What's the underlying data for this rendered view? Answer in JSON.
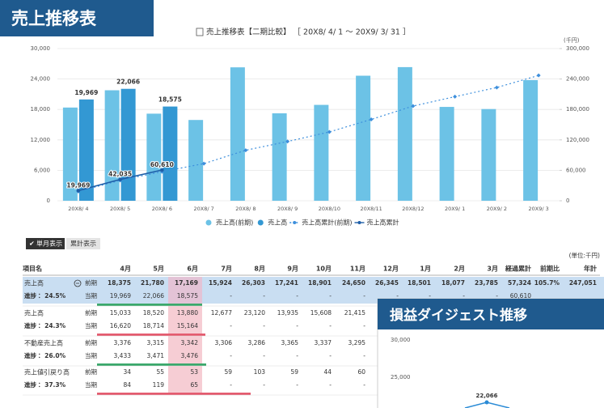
{
  "header": {
    "badge": "売上推移表"
  },
  "chart_data": {
    "type": "bar_line",
    "title": "売上推移表【二期比較】 ［ 20X8/ 4/ 1 ～ 20X9/ 3/ 31 ］",
    "y2_unit": "(千円)",
    "categories": [
      "20X8/ 4",
      "20X8/ 5",
      "20X8/ 6",
      "20X8/ 7",
      "20X8/ 8",
      "20X8/ 9",
      "20X8/10",
      "20X8/11",
      "20X8/12",
      "20X9/ 1",
      "20X9/ 2",
      "20X9/ 3"
    ],
    "ylim": [
      0,
      30000
    ],
    "yticks": [
      0,
      {
        "value": 6000,
        "label": "6,000"
      },
      {
        "value": 12000,
        "label": "12,000"
      },
      {
        "value": 18000,
        "label": "18,000"
      },
      {
        "value": 24000,
        "label": "24,000"
      },
      {
        "value": 30000,
        "label": "30,000"
      }
    ],
    "y2lim": [
      0,
      300000
    ],
    "y2ticks": [
      0,
      {
        "value": 60000,
        "label": "60,000"
      },
      {
        "value": 120000,
        "label": "120,000"
      },
      {
        "value": 180000,
        "label": "180,000"
      },
      {
        "value": 240000,
        "label": "240,000"
      },
      {
        "value": 300000,
        "label": "300,000"
      }
    ],
    "grid": true,
    "legend": "bottom",
    "series": [
      {
        "name": "売上高(前期)",
        "type": "bar",
        "color": "#6cc2e6",
        "values": [
          18375,
          21780,
          17169,
          15924,
          26303,
          17241,
          18901,
          24650,
          26345,
          18501,
          18077,
          23785
        ]
      },
      {
        "name": "売上高",
        "type": "bar",
        "color": "#3398d3",
        "values": [
          19969,
          22066,
          18575,
          null,
          null,
          null,
          null,
          null,
          null,
          null,
          null,
          null
        ],
        "value_labels": [
          "19,969",
          "22,066",
          "18,575",
          null,
          null,
          null,
          null,
          null,
          null,
          null,
          null,
          null
        ]
      },
      {
        "name": "売上高累計(前期)",
        "type": "line",
        "axis": "y2",
        "dashed": true,
        "color": "#3d8fdc",
        "values": [
          18375,
          40155,
          57324,
          73248,
          99551,
          116792,
          135693,
          160343,
          186688,
          205189,
          223266,
          247051
        ]
      },
      {
        "name": "売上高累計",
        "type": "line",
        "axis": "y2",
        "dashed": false,
        "color": "#1f5fa8",
        "values": [
          19969,
          42035,
          60610,
          null,
          null,
          null,
          null,
          null,
          null,
          null,
          null,
          null
        ],
        "value_labels": [
          "19,969",
          "42,035",
          "60,610",
          null,
          null,
          null,
          null,
          null,
          null,
          null,
          null,
          null
        ]
      }
    ]
  },
  "tabs": [
    "単月表示",
    "累計表示"
  ],
  "unit": "(単位:千円)",
  "table": {
    "headers": [
      "項目名",
      "4月",
      "5月",
      "6月",
      "7月",
      "8月",
      "9月",
      "10月",
      "11月",
      "12月",
      "1月",
      "2月",
      "3月",
      "経過累計",
      "前期比",
      "年計"
    ],
    "groups": [
      {
        "name": "売上高",
        "progress": "進捗： 24.5%",
        "rows": [
          {
            "label": "前期",
            "cells": [
              "18,375",
              "21,780",
              "17,169",
              "15,924",
              "26,303",
              "17,241",
              "18,901",
              "24,650",
              "26,345",
              "18,501",
              "18,077",
              "23,785",
              "57,324",
              "105.7%",
              "247,051"
            ]
          },
          {
            "label": "当期",
            "cells": [
              "19,969",
              "22,066",
              "18,575",
              "-",
              "-",
              "-",
              "-",
              "-",
              "-",
              "-",
              "-",
              "-",
              "60,610"
            ]
          }
        ]
      },
      {
        "name": "売上高",
        "progress": "進捗： 24.3%",
        "rows": [
          {
            "label": "前期",
            "cells": [
              "15,033",
              "18,520",
              "13,880",
              "12,677",
              "23,120",
              "13,935",
              "15,608",
              "21,415"
            ]
          },
          {
            "label": "当期",
            "cells": [
              "16,620",
              "18,714",
              "15,164",
              "-",
              "-",
              "-",
              "-",
              "-"
            ]
          }
        ]
      },
      {
        "name": "不動産売上高",
        "progress": "進捗： 26.0%",
        "rows": [
          {
            "label": "前期",
            "cells": [
              "3,376",
              "3,315",
              "3,342",
              "3,306",
              "3,286",
              "3,365",
              "3,337",
              "3,295"
            ]
          },
          {
            "label": "当期",
            "cells": [
              "3,433",
              "3,471",
              "3,476",
              "-",
              "-",
              "-",
              "-",
              "-"
            ]
          }
        ]
      },
      {
        "name": "売上値引戻り高",
        "progress": "進捗： 37.3%",
        "rows": [
          {
            "label": "前期",
            "cells": [
              "34",
              "55",
              "53",
              "59",
              "103",
              "59",
              "44",
              "60"
            ]
          },
          {
            "label": "当期",
            "cells": [
              "84",
              "119",
              "65",
              "-",
              "-",
              "-",
              "-",
              "-"
            ]
          }
        ]
      }
    ]
  },
  "digest": {
    "title": "損益ダイジェスト推移",
    "ticks": [
      "30,000",
      "25,000"
    ],
    "point_label": "22,066"
  }
}
